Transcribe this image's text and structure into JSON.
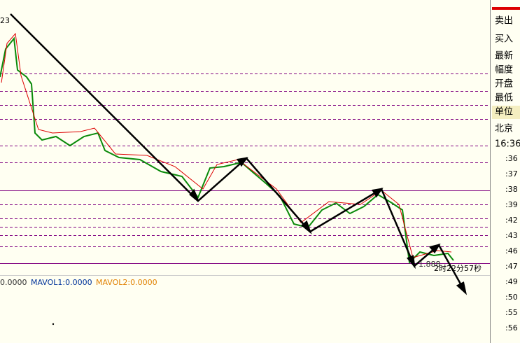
{
  "chart_header": {
    "corner_label": "23"
  },
  "indicator": {
    "text_1": "0.0000",
    "mavol1": "MAVOL1:0.0000",
    "mavol2": "MAVOL2:0.0000"
  },
  "annotations": {
    "price_tag": "1.888",
    "countdown": "2时22分57秒"
  },
  "side_panel": {
    "labels": [
      "卖出",
      "买入",
      "最新",
      "幅度",
      "开盘",
      "最低",
      "单位",
      "北京",
      "16:36"
    ]
  },
  "axis_labels": [
    ":36",
    ":37",
    ":38",
    ":39",
    ":42",
    ":43",
    ":46",
    ":47",
    ":49",
    ":50",
    ":55",
    ":56"
  ]
}
